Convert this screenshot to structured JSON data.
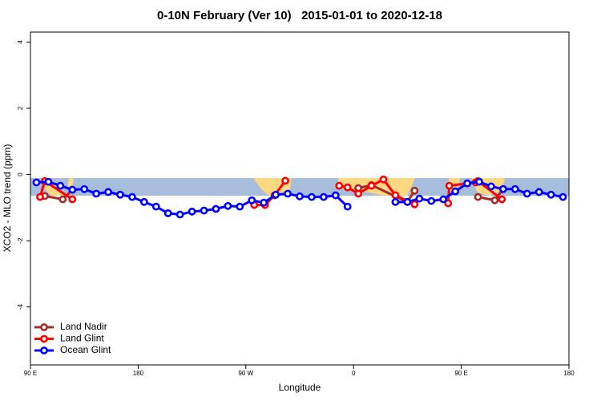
{
  "chart_data": {
    "type": "line",
    "title": "0-10N February (Ver 10)   2015-01-01 to 2020-12-18",
    "xlabel": "Longitude",
    "ylabel": "XCO2 - MLO trend (ppm)",
    "xlim": [
      90,
      540
    ],
    "xticks": [
      {
        "value": 90,
        "label": "90 E"
      },
      180,
      {
        "value": 270,
        "label": "90 W"
      },
      {
        "value": 360,
        "label": "0"
      },
      {
        "value": 450,
        "label": "90 E"
      },
      {
        "value": 540,
        "label": "180"
      }
    ],
    "ylim": [
      -5.75,
      4.3
    ],
    "yticks": [
      -4,
      -2,
      0,
      2,
      4
    ],
    "legend": "bottom-left",
    "series": [
      {
        "name": "Land Nadir",
        "color": "#a52a2a",
        "x": [
          102,
          117,
          125,
          null,
          364,
          375,
          405,
          411,
          null,
          464,
          478,
          485
        ],
        "values": [
          -0.65,
          -0.75,
          -0.46,
          null,
          -0.41,
          -0.32,
          -0.83,
          -0.49,
          null,
          -0.68,
          -0.78,
          -0.44
        ]
      },
      {
        "name": "Land Glint",
        "color": "#ff0000",
        "x": [
          98,
          102,
          125,
          null,
          277,
          286,
          294,
          303,
          null,
          348,
          355,
          364,
          375,
          385,
          395,
          411,
          null,
          439,
          440,
          462,
          464,
          484
        ],
        "values": [
          -0.68,
          -0.2,
          -0.75,
          null,
          -0.92,
          -0.92,
          -0.63,
          -0.19,
          null,
          -0.34,
          -0.39,
          -0.58,
          -0.34,
          -0.15,
          -0.63,
          -0.9,
          null,
          -0.87,
          -0.34,
          -0.24,
          -0.2,
          -0.75
        ]
      },
      {
        "name": "Ocean Glint",
        "color": "#0000ff",
        "x": [
          95,
          105,
          115,
          125,
          135,
          145,
          155,
          165,
          175,
          185,
          195,
          205,
          215,
          225,
          235,
          245,
          255,
          265,
          275,
          285,
          295,
          305,
          315,
          325,
          335,
          345,
          355,
          365,
          395,
          405,
          415,
          425,
          435,
          445,
          455,
          465,
          475,
          485,
          495,
          505,
          515,
          525,
          535
        ],
        "values": [
          -0.24,
          -0.22,
          -0.34,
          -0.46,
          -0.44,
          -0.58,
          -0.53,
          -0.61,
          -0.68,
          -0.83,
          -0.97,
          -1.17,
          -1.21,
          -1.12,
          -1.09,
          -1.04,
          -0.95,
          -0.97,
          -0.78,
          -0.85,
          -0.61,
          -0.58,
          -0.66,
          -0.68,
          -0.68,
          -0.63,
          -0.97,
          null,
          -0.83,
          -0.83,
          -0.73,
          -0.8,
          -0.75,
          -0.51,
          -0.27,
          -0.22,
          -0.36,
          -0.44,
          -0.44,
          -0.58,
          -0.53,
          -0.61,
          -0.68
        ]
      }
    ]
  }
}
